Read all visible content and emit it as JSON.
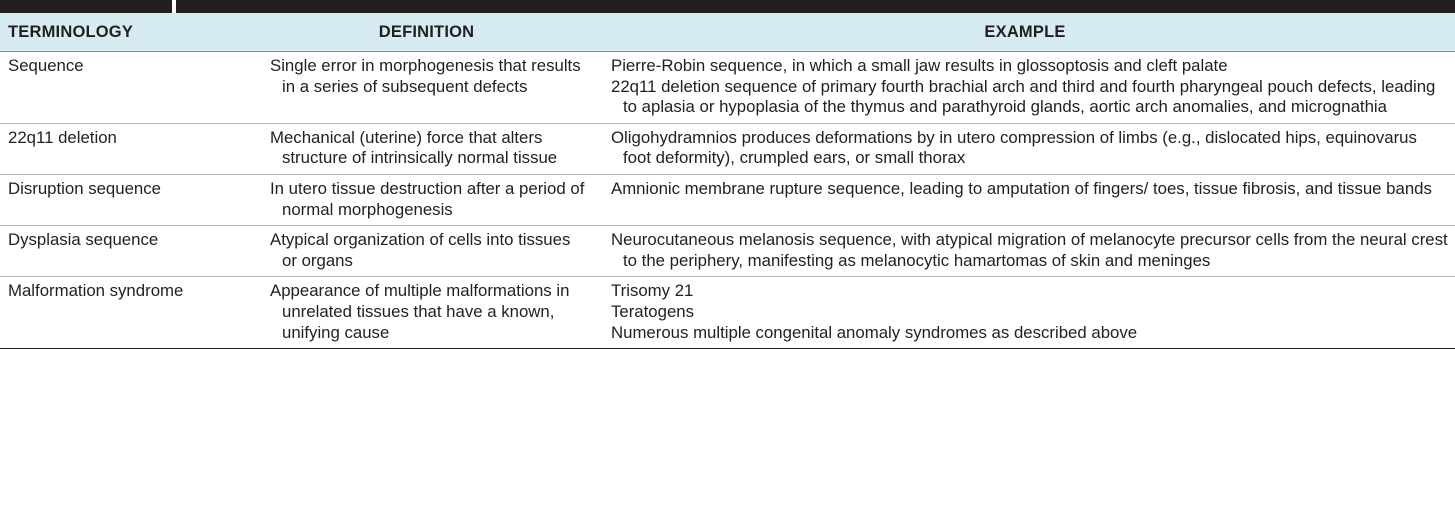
{
  "headers": {
    "terminology": "TERMINOLOGY",
    "definition": "DEFINITION",
    "example": "EXAMPLE"
  },
  "rows": [
    {
      "term": "Sequence",
      "definition": "Single error in morphogenesis that results in a series of subsequent defects",
      "examples": [
        "Pierre-Robin sequence, in which a small jaw results in glossoptosis and cleft palate",
        "22q11 deletion sequence of primary fourth brachial arch and third and fourth pharyngeal pouch defects, leading to aplasia or hypoplasia of the thymus and parathyroid glands, aortic arch anomalies, and micrognathia"
      ]
    },
    {
      "term": "22q11 deletion",
      "definition": "Mechanical (uterine) force that alters structure of intrinsically normal tissue",
      "examples": [
        "Oligohydramnios produces deformations by in utero compression of limbs (e.g., dislocated hips, equinovarus foot deformity), crumpled ears, or small thorax"
      ]
    },
    {
      "term": "Disruption sequence",
      "definition": "In utero tissue destruction after a period of normal morphogenesis",
      "examples": [
        "Amnionic membrane rupture sequence, leading to amputation of fingers/ toes, tissue fibrosis, and tissue bands"
      ]
    },
    {
      "term": "Dysplasia sequence",
      "definition": "Atypical organization of cells into tissues or organs",
      "examples": [
        "Neurocutaneous melanosis sequence, with atypical migration of melanocyte precursor cells from the neural crest to the periphery, manifesting as melanocytic hamartomas of skin and meninges"
      ]
    },
    {
      "term": "Malformation syndrome",
      "definition": "Appearance of multiple malformations in unrelated tissues that have a known, unifying cause",
      "examples": [
        "Trisomy 21",
        "Teratogens",
        "Numerous multiple congenital anomaly syndromes as described above"
      ]
    }
  ]
}
